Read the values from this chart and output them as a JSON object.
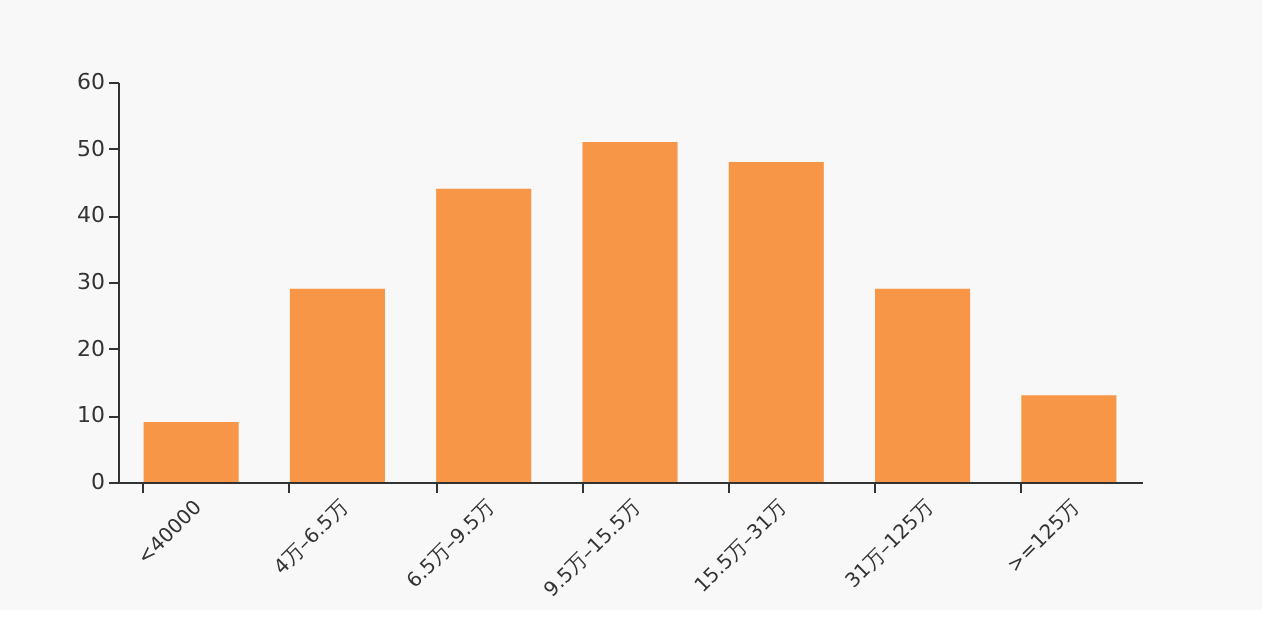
{
  "chart_data": {
    "type": "bar",
    "categories": [
      "<40000",
      "4万–6.5万",
      "6.5万–9.5万",
      "9.5万–15.5万",
      "15.5万–31万",
      "31万–125万",
      ">=125万"
    ],
    "values": [
      9,
      29,
      44,
      51,
      48,
      29,
      13
    ],
    "color": "#f79646",
    "ylim": [
      0,
      60
    ],
    "yticks": [
      0,
      10,
      20,
      30,
      40,
      50,
      60
    ],
    "grid": false
  }
}
